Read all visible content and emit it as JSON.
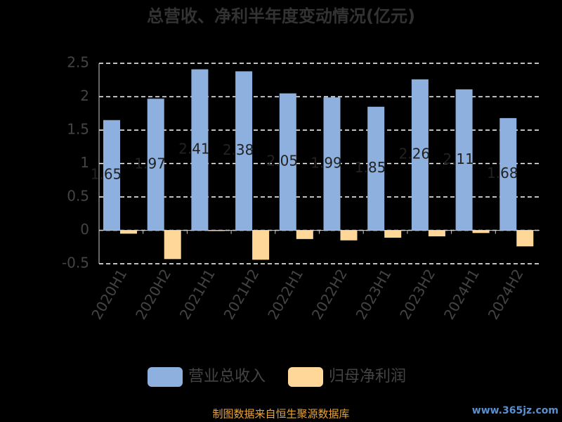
{
  "chart_data": {
    "type": "bar",
    "title": "总营收、净利半年度变动情况(亿元)",
    "categories": [
      "2020H1",
      "2020H2",
      "2021H1",
      "2021H2",
      "2022H1",
      "2022H2",
      "2023H1",
      "2023H2",
      "2024H1",
      "2024H2"
    ],
    "series": [
      {
        "name": "营业总收入",
        "color": "#8eb0de",
        "values": [
          1.65,
          1.97,
          2.41,
          2.38,
          2.05,
          1.99,
          1.85,
          2.26,
          2.11,
          1.68
        ],
        "value_labels": [
          "1.65",
          "1.97",
          "2.41",
          "2.38",
          "2.05",
          "1.99",
          "1.85",
          "2.26",
          "2.11",
          "1.68"
        ]
      },
      {
        "name": "归母净利润",
        "color": "#ffd899",
        "values": [
          -0.05,
          -0.43,
          -0.01,
          -0.44,
          -0.13,
          -0.15,
          -0.11,
          -0.09,
          -0.04,
          -0.24
        ]
      }
    ],
    "ylim": [
      -0.5,
      2.5
    ],
    "yticks": [
      -0.5,
      0,
      0.5,
      1,
      1.5,
      2,
      2.5
    ],
    "grid": true,
    "footer": "制图数据来自恒生聚源数据库",
    "watermark": "www.365jz.com"
  }
}
